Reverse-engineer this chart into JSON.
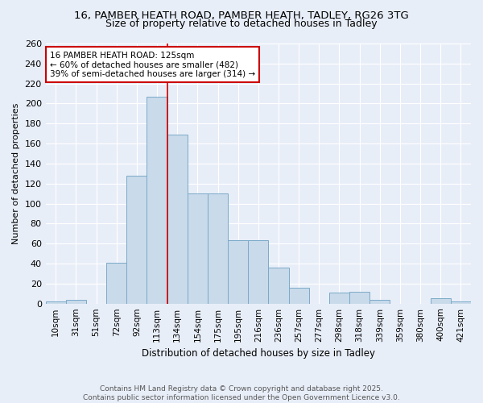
{
  "title_line1": "16, PAMBER HEATH ROAD, PAMBER HEATH, TADLEY, RG26 3TG",
  "title_line2": "Size of property relative to detached houses in Tadley",
  "xlabel": "Distribution of detached houses by size in Tadley",
  "ylabel": "Number of detached properties",
  "categories": [
    "10sqm",
    "31sqm",
    "51sqm",
    "72sqm",
    "92sqm",
    "113sqm",
    "134sqm",
    "154sqm",
    "175sqm",
    "195sqm",
    "216sqm",
    "236sqm",
    "257sqm",
    "277sqm",
    "298sqm",
    "318sqm",
    "339sqm",
    "359sqm",
    "380sqm",
    "400sqm",
    "421sqm"
  ],
  "values": [
    2,
    4,
    0,
    41,
    128,
    207,
    169,
    110,
    110,
    63,
    63,
    36,
    16,
    0,
    11,
    12,
    4,
    0,
    0,
    5,
    2
  ],
  "bar_color": "#c9daea",
  "bar_edge_color": "#7aaac8",
  "annotation_line1": "16 PAMBER HEATH ROAD: 125sqm",
  "annotation_line2": "← 60% of detached houses are smaller (482)",
  "annotation_line3": "39% of semi-detached houses are larger (314) →",
  "annotation_box_color": "#ffffff",
  "annotation_box_edge_color": "#cc0000",
  "marker_line_color": "#cc0000",
  "ylim": [
    0,
    260
  ],
  "yticks": [
    0,
    20,
    40,
    60,
    80,
    100,
    120,
    140,
    160,
    180,
    200,
    220,
    240,
    260
  ],
  "background_color": "#e8eef8",
  "grid_color": "#ffffff",
  "footer_line1": "Contains HM Land Registry data © Crown copyright and database right 2025.",
  "footer_line2": "Contains public sector information licensed under the Open Government Licence v3.0."
}
